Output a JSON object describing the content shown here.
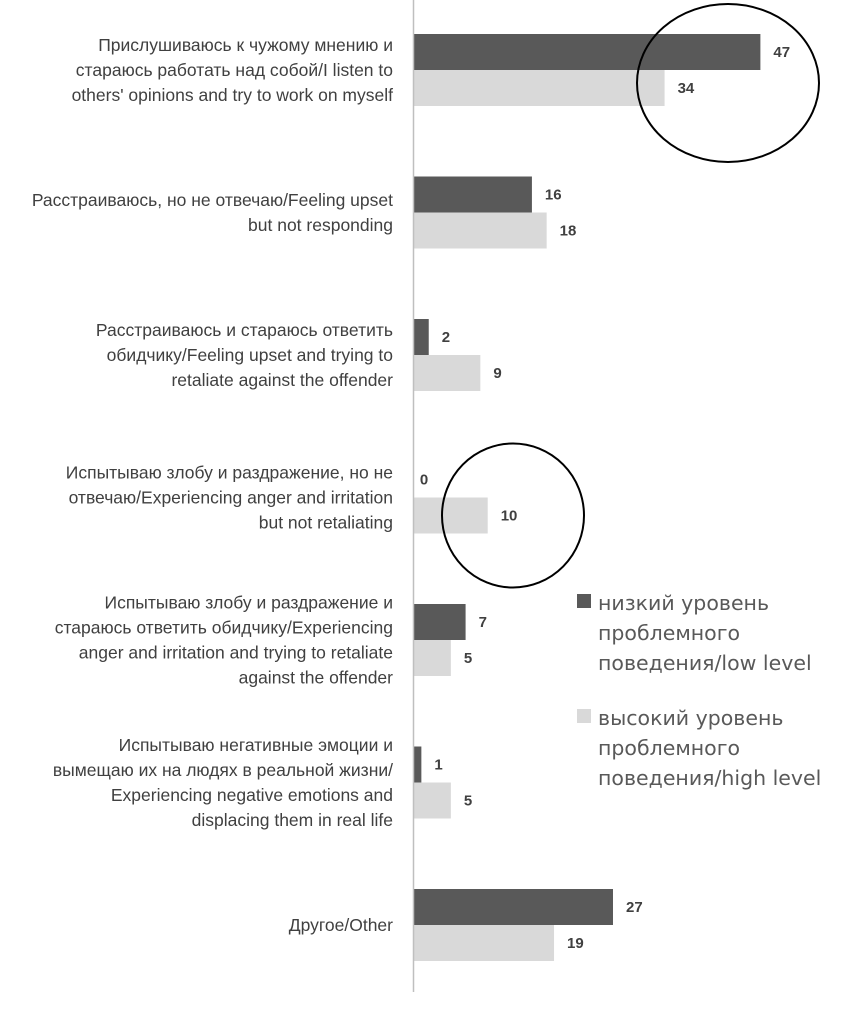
{
  "chart_data": {
    "type": "bar",
    "orientation": "horizontal",
    "categories": [
      [
        "Прислушиваюсь к чужому мнению и",
        "стараюсь работать над собой/I listen to",
        "others' opinions and try to work on myself"
      ],
      [
        "Расстраиваюсь, но не отвечаю/Feeling upset",
        "but not responding"
      ],
      [
        "Расстраиваюсь и стараюсь ответить",
        "обидчику/Feeling upset and trying to",
        "retaliate against the offender"
      ],
      [
        "Испытываю злобу и раздражение, но не",
        "отвечаю/Experiencing anger and irritation",
        "but not retaliating"
      ],
      [
        "Испытываю злобу и раздражение и",
        "стараюсь ответить обидчику/Experiencing",
        "anger and irritation and trying to retaliate",
        "against the offender"
      ],
      [
        "Испытываю негативные эмоции и",
        "вымещаю их на людях в реальной жизни/",
        "Experiencing negative emotions and",
        "displacing them in real life"
      ],
      [
        "Другое/Other"
      ]
    ],
    "series": [
      {
        "name": "низкий уровень проблемного поведения/low level",
        "color": "#595959",
        "values": [
          47,
          16,
          2,
          0,
          7,
          1,
          27
        ]
      },
      {
        "name": "высокий уровень проблемного поведения/high level",
        "color": "#d9d9d9",
        "values": [
          34,
          18,
          9,
          10,
          5,
          5,
          19
        ]
      }
    ],
    "legend": {
      "placement": "right",
      "entries": [
        [
          "низкий уровень",
          "проблемного",
          "поведения/low level"
        ],
        [
          "высокий уровень",
          "проблемного",
          "поведения/high level"
        ]
      ]
    },
    "annotations": [
      {
        "shape": "circle",
        "category_index": 0,
        "description": "hand-drawn ellipse highlighting the bar ends"
      },
      {
        "shape": "circle",
        "category_index": 3,
        "description": "hand-drawn circle highlighting the bars"
      }
    ],
    "xlim": [
      0,
      47
    ],
    "grid": false,
    "title": "",
    "xlabel": "",
    "ylabel": ""
  }
}
